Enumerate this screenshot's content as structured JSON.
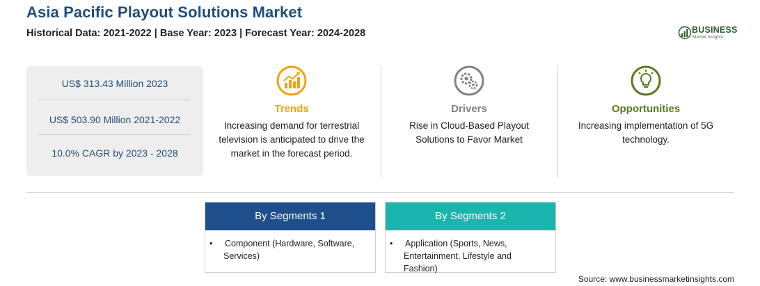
{
  "header": {
    "title": "Asia Pacific Playout Solutions Market",
    "subtitle": "Historical Data: 2021-2022 | Base Year: 2023 | Forecast Year: 2024-2028"
  },
  "logo": {
    "name": "BUSINESS",
    "tagline": "Market Insights",
    "color": "#2d5d2d"
  },
  "stats": [
    {
      "text": "US$ 313.43 Million 2023"
    },
    {
      "text": "US$ 503.90 Million 2021-2022"
    },
    {
      "text": "10.0% CAGR by 2023 - 2028"
    }
  ],
  "columns": [
    {
      "label": "Trends",
      "icon": "trending-chart-icon",
      "color": "#f0a30a",
      "text": "Increasing demand for terrestrial television is anticipated to drive the market in the forecast period."
    },
    {
      "label": "Drivers",
      "icon": "gears-icon",
      "color": "#808080",
      "text": "Rise in Cloud-Based Playout Solutions to Favor Market"
    },
    {
      "label": "Opportunities",
      "icon": "lightbulb-icon",
      "color": "#5a7a1e",
      "text": "Increasing implementation of 5G technology."
    }
  ],
  "segments": [
    {
      "title": "By Segments 1",
      "color": "#1f4e8c",
      "items": [
        "Component (Hardware, Software, Services)"
      ]
    },
    {
      "title": "By Segments 2",
      "color": "#1ab5ad",
      "items": [
        "Application (Sports, News, Entertainment, Lifestyle and Fashion)"
      ]
    }
  ],
  "footer": {
    "source": "Source: www.businessmarketinsights.com"
  }
}
